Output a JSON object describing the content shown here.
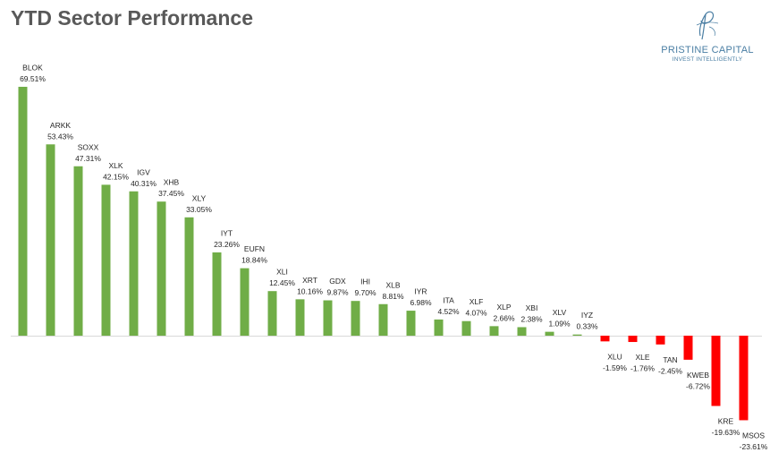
{
  "title": "YTD Sector Performance",
  "brand": {
    "name": "PRISTINE CAPITAL",
    "tagline": "INVEST INTELLIGENTLY",
    "color": "#4a7ea3"
  },
  "colors": {
    "positive": "#70ad47",
    "negative": "#ff0000",
    "title": "#595959",
    "baseline": "#d9d9d9"
  },
  "chart_data": {
    "type": "bar",
    "title": "YTD Sector Performance",
    "xlabel": "",
    "ylabel": "",
    "ylim": [
      -23.61,
      69.51
    ],
    "grid": false,
    "legend": "none",
    "categories": [
      "BLOK",
      "ARKK",
      "SOXX",
      "XLK",
      "IGV",
      "XHB",
      "XLY",
      "IYT",
      "EUFN",
      "XLI",
      "XRT",
      "GDX",
      "IHI",
      "XLB",
      "IYR",
      "ITA",
      "XLF",
      "XLP",
      "XBI",
      "XLV",
      "IYZ",
      "XLU",
      "XLE",
      "TAN",
      "KWEB",
      "KRE",
      "MSOS"
    ],
    "values": [
      69.51,
      53.43,
      47.31,
      42.15,
      40.31,
      37.45,
      33.05,
      23.26,
      18.84,
      12.45,
      10.16,
      9.87,
      9.7,
      8.81,
      6.98,
      4.52,
      4.07,
      2.66,
      2.38,
      1.09,
      0.33,
      -1.59,
      -1.76,
      -2.45,
      -6.72,
      -19.63,
      -23.61
    ],
    "data_labels": [
      "69.51%",
      "53.43%",
      "47.31%",
      "42.15%",
      "40.31%",
      "37.45%",
      "33.05%",
      "23.26%",
      "18.84%",
      "12.45%",
      "10.16%",
      "9.87%",
      "9.70%",
      "8.81%",
      "6.98%",
      "4.52%",
      "4.07%",
      "2.66%",
      "2.38%",
      "1.09%",
      "0.33%",
      "-1.59%",
      "-1.76%",
      "-2.45%",
      "-6.72%",
      "-19.63%",
      "-23.61%"
    ]
  }
}
